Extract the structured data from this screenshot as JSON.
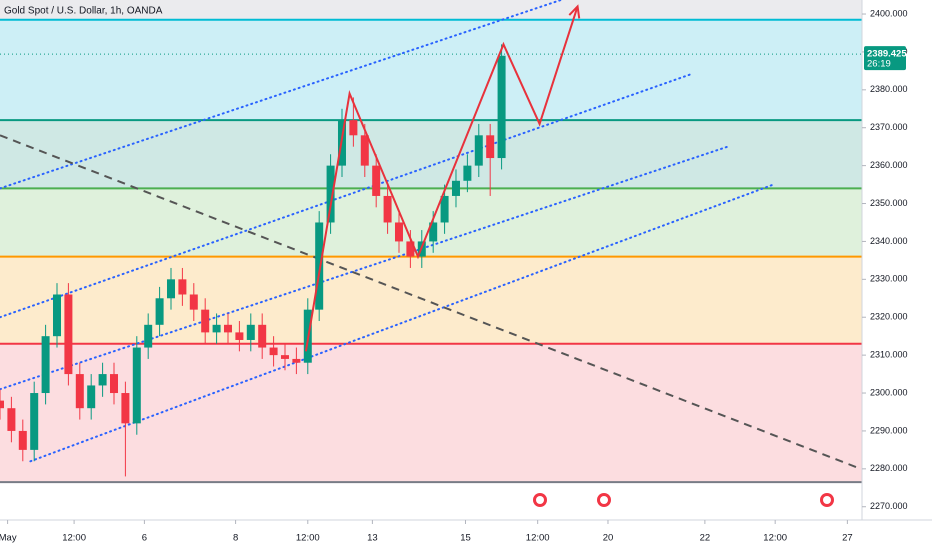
{
  "chart_data": {
    "type": "candlestick",
    "title": "Gold Spot / U.S. Dollar, 1h, OANDA",
    "x": [
      0,
      6,
      12,
      18,
      24,
      30,
      36,
      42,
      48,
      54,
      60,
      66,
      72,
      78,
      84,
      90,
      96,
      102,
      108,
      114,
      120,
      126,
      132,
      138,
      144,
      150,
      156,
      162,
      168,
      174,
      180,
      186,
      192,
      198,
      204,
      210,
      216,
      222,
      228,
      234,
      240,
      246,
      252,
      258,
      264
    ],
    "open": [
      2298,
      2296,
      2290,
      2285,
      2300,
      2315,
      2326,
      2305,
      2296,
      2302,
      2305,
      2300,
      2292,
      2312,
      2318,
      2325,
      2330,
      2326,
      2322,
      2316,
      2318,
      2316,
      2314,
      2318,
      2312,
      2310,
      2309,
      2308,
      2322,
      2345,
      2360,
      2372,
      2368,
      2360,
      2352,
      2345,
      2340,
      2336,
      2340,
      2345,
      2352,
      2356,
      2360,
      2368,
      2362
    ],
    "high": [
      2301,
      2299,
      2293,
      2303,
      2318,
      2329,
      2329,
      2308,
      2305,
      2308,
      2308,
      2303,
      2315,
      2321,
      2328,
      2333,
      2333,
      2329,
      2325,
      2321,
      2321,
      2319,
      2321,
      2321,
      2315,
      2313,
      2312,
      2325,
      2348,
      2363,
      2375,
      2378,
      2371,
      2363,
      2355,
      2348,
      2343,
      2343,
      2348,
      2355,
      2359,
      2363,
      2371,
      2371,
      2392
    ],
    "low": [
      2293,
      2287,
      2282,
      2282,
      2297,
      2312,
      2302,
      2293,
      2293,
      2299,
      2297,
      2278,
      2289,
      2309,
      2315,
      2322,
      2323,
      2319,
      2313,
      2313,
      2313,
      2311,
      2311,
      2309,
      2307,
      2306,
      2305,
      2305,
      2319,
      2342,
      2357,
      2365,
      2357,
      2349,
      2342,
      2337,
      2333,
      2333,
      2337,
      2342,
      2349,
      2353,
      2357,
      2352,
      2359
    ],
    "close": [
      2296,
      2290,
      2285,
      2300,
      2315,
      2326,
      2305,
      2296,
      2302,
      2305,
      2300,
      2292,
      2312,
      2318,
      2325,
      2330,
      2326,
      2322,
      2316,
      2318,
      2316,
      2314,
      2318,
      2312,
      2310,
      2309,
      2308,
      2322,
      2345,
      2360,
      2372,
      2368,
      2360,
      2352,
      2345,
      2340,
      2336,
      2340,
      2345,
      2352,
      2356,
      2360,
      2368,
      2362,
      2389
    ],
    "up_color": "#089981",
    "down_color": "#f23645",
    "xlim": [
      0,
      453.7
    ],
    "xticks": [
      {
        "value": 4,
        "label": "May"
      },
      {
        "value": 39,
        "label": "12:00"
      },
      {
        "value": 76,
        "label": "6"
      },
      {
        "value": 124,
        "label": "8"
      },
      {
        "value": 162,
        "label": "12:00"
      },
      {
        "value": 196,
        "label": "13"
      },
      {
        "value": 245,
        "label": "15"
      },
      {
        "value": 283,
        "label": "12:00"
      },
      {
        "value": 320,
        "label": "20"
      },
      {
        "value": 371,
        "label": "22"
      },
      {
        "value": 408,
        "label": "12:00"
      },
      {
        "value": 446,
        "label": "27"
      }
    ],
    "ylim": [
      2266.5,
      2403.7
    ],
    "yticks": [
      {
        "value": 2400,
        "label": "2400.000"
      },
      {
        "value": 2390,
        "label": "2390.000"
      },
      {
        "value": 2380,
        "label": "2380.000"
      },
      {
        "value": 2370,
        "label": "2370.000"
      },
      {
        "value": 2360,
        "label": "2360.000"
      },
      {
        "value": 2350,
        "label": "2350.000"
      },
      {
        "value": 2340,
        "label": "2340.000"
      },
      {
        "value": 2330,
        "label": "2330.000"
      },
      {
        "value": 2320,
        "label": "2320.000"
      },
      {
        "value": 2310,
        "label": "2310.000"
      },
      {
        "value": 2300,
        "label": "2300.000"
      },
      {
        "value": 2290,
        "label": "2290.000"
      },
      {
        "value": 2280,
        "label": "2280.000"
      },
      {
        "value": 2270,
        "label": "2270.000"
      }
    ],
    "levels": [
      {
        "value": 2398.5,
        "color": "#00bcd4"
      },
      {
        "value": 2372,
        "color": "#089981"
      },
      {
        "value": 2354,
        "color": "#4caf50"
      },
      {
        "value": 2336,
        "color": "#ff9800"
      },
      {
        "value": 2313,
        "color": "#f23645"
      },
      {
        "value": 2276.5,
        "color": "#787b86"
      }
    ],
    "zone_colors": [
      "#cdeff6",
      "#cfe8e4",
      "#dff1dc",
      "#fdebcc",
      "#fcdde0"
    ],
    "channels": [
      {
        "x": [
          0,
          297
        ],
        "y": [
          2354,
          2404
        ],
        "color": "#2962ff"
      },
      {
        "x": [
          0,
          363
        ],
        "y": [
          2320,
          2384
        ],
        "color": "#2962ff"
      },
      {
        "x": [
          0,
          383
        ],
        "y": [
          2301,
          2365
        ],
        "color": "#2962ff"
      },
      {
        "x": [
          16,
          407
        ],
        "y": [
          2282,
          2355
        ],
        "color": "#2962ff"
      }
    ],
    "trend": {
      "x": [
        0,
        453
      ],
      "y": [
        2368,
        2280
      ],
      "color": "#555555"
    },
    "path": {
      "x": [
        161,
        184,
        220,
        265,
        284,
        304
      ],
      "y": [
        2311,
        2379,
        2336,
        2392,
        2371,
        2402
      ],
      "color": "#e8323c"
    },
    "price_label": {
      "value": 2389.425,
      "label": "2389.425"
    },
    "countdown": "26:19"
  }
}
